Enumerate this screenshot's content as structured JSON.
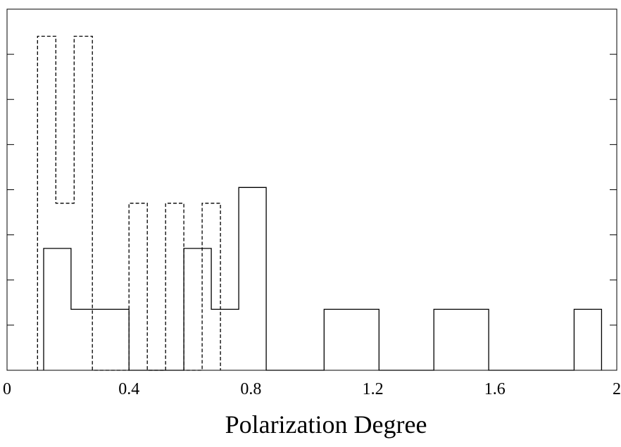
{
  "chart_data": {
    "type": "histogram",
    "xlabel": "Polarization Degree",
    "ylabel": "",
    "xlim": [
      0,
      2
    ],
    "ylim": [
      0,
      8
    ],
    "x_ticks": [
      "0",
      "0.4",
      "0.8",
      "1.2",
      "1.6",
      "2"
    ],
    "y_minor_ticks": [
      1,
      2,
      3,
      4,
      5,
      6,
      7,
      8
    ],
    "grid": false,
    "series": [
      {
        "style": "solid",
        "bins": [
          {
            "x0": 0.12,
            "x1": 0.21,
            "y": 2.7
          },
          {
            "x0": 0.21,
            "x1": 0.4,
            "y": 1.35
          },
          {
            "x0": 0.58,
            "x1": 0.67,
            "y": 2.7
          },
          {
            "x0": 0.67,
            "x1": 0.76,
            "y": 1.35
          },
          {
            "x0": 0.76,
            "x1": 0.85,
            "y": 4.05
          },
          {
            "x0": 1.04,
            "x1": 1.22,
            "y": 1.35
          },
          {
            "x0": 1.4,
            "x1": 1.58,
            "y": 1.35
          },
          {
            "x0": 1.86,
            "x1": 1.95,
            "y": 1.35
          }
        ]
      },
      {
        "style": "dashed",
        "bins": [
          {
            "x0": 0.1,
            "x1": 0.16,
            "y": 7.4
          },
          {
            "x0": 0.16,
            "x1": 0.22,
            "y": 3.7
          },
          {
            "x0": 0.22,
            "x1": 0.28,
            "y": 7.4
          },
          {
            "x0": 0.4,
            "x1": 0.46,
            "y": 3.7
          },
          {
            "x0": 0.52,
            "x1": 0.58,
            "y": 3.7
          },
          {
            "x0": 0.64,
            "x1": 0.7,
            "y": 3.7
          }
        ]
      }
    ]
  }
}
